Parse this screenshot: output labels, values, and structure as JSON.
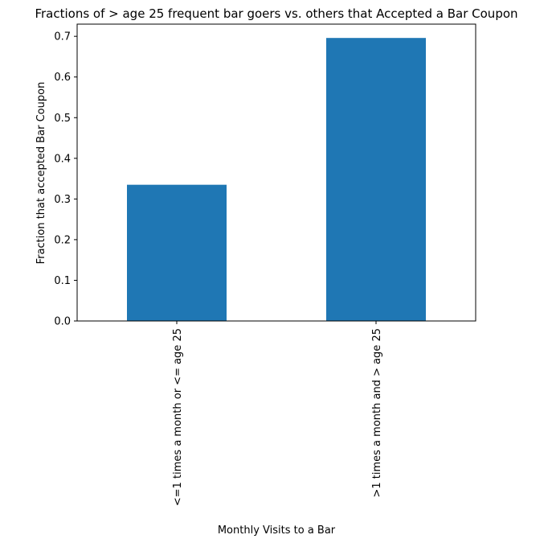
{
  "chart_data": {
    "type": "bar",
    "title": "Fractions of > age 25 frequent bar goers vs. others that Accepted a Bar Coupon",
    "xlabel": "Monthly Visits to a Bar",
    "ylabel": "Fraction that accepted Bar Coupon",
    "categories": [
      "<=1 times a month or <= age 25",
      ">1 times a month and > age 25"
    ],
    "values": [
      0.335,
      0.696
    ],
    "ylim": [
      0,
      0.73
    ],
    "yticks": [
      "0.0",
      "0.1",
      "0.2",
      "0.3",
      "0.4",
      "0.5",
      "0.6",
      "0.7"
    ],
    "bar_color": "#1f77b4",
    "grid": false,
    "legend": "none"
  }
}
